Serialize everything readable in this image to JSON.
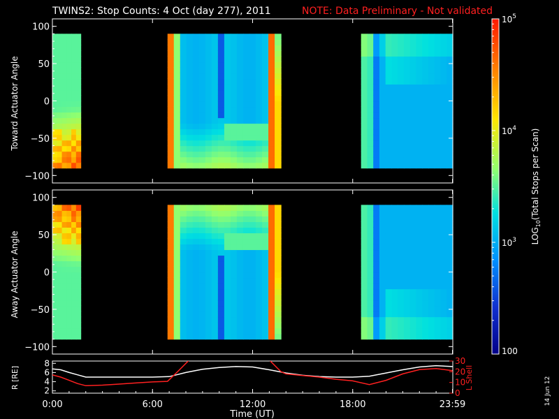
{
  "header": {
    "title": "TWINS2: Stop Counts:  4 Oct (day 277), 2011",
    "note": "NOTE: Data Preliminary - Not validated",
    "note_color": "#ff2020"
  },
  "side_date": "14 Jun 12",
  "chart_data": [
    {
      "type": "heatmap",
      "name": "toward",
      "ylabel": "Toward Actuator Angle",
      "ylim": [
        -110,
        110
      ],
      "yticks": [
        100,
        50,
        0,
        -50,
        -100
      ],
      "xlim": [
        0,
        24
      ],
      "data_intervals_ut": [
        [
          0.0,
          1.7
        ],
        [
          6.9,
          13.7
        ],
        [
          18.5,
          24.0
        ]
      ],
      "angle_range": [
        -90,
        90
      ]
    },
    {
      "type": "heatmap",
      "name": "away",
      "ylabel": "Away Actuator Angle",
      "ylim": [
        -110,
        110
      ],
      "yticks": [
        100,
        50,
        0,
        -50,
        -100
      ],
      "xlim": [
        0,
        24
      ],
      "data_intervals_ut": [
        [
          0.0,
          1.7
        ],
        [
          6.9,
          13.7
        ],
        [
          18.5,
          24.0
        ]
      ],
      "angle_range": [
        -90,
        90
      ]
    },
    {
      "type": "line",
      "name": "orbit",
      "xlabel": "Time (UT)",
      "xlim": [
        0,
        24
      ],
      "xticks": [
        "0:00",
        "6:00",
        "12:00",
        "18:00",
        "23:59"
      ],
      "xtick_values": [
        0,
        6,
        12,
        18,
        23.98
      ],
      "left_axis": {
        "label": "R [RE]",
        "ylim": [
          1.5,
          8.5
        ],
        "yticks": [
          "8",
          "6",
          "4",
          "2"
        ],
        "ytick_values": [
          8,
          6,
          4,
          2
        ]
      },
      "right_axis": {
        "label": "L Shell",
        "ylim": [
          0,
          30
        ],
        "yticks": [
          "30",
          "20",
          "10",
          "0"
        ],
        "ytick_values": [
          30,
          20,
          10,
          0
        ],
        "color": "#ff2020"
      },
      "series": [
        {
          "axis": "left",
          "color": "#ffffff",
          "x": [
            0,
            0.5,
            1,
            1.5,
            2,
            3,
            4,
            5,
            6,
            7,
            8,
            9,
            10,
            11,
            12,
            13,
            14,
            15,
            16,
            17,
            18,
            19,
            20,
            21,
            22,
            23,
            23.98
          ],
          "y": [
            6.8,
            6.6,
            6.0,
            5.5,
            5.0,
            5.0,
            5.0,
            5.0,
            5.0,
            5.1,
            6.0,
            6.7,
            7.1,
            7.3,
            7.2,
            6.6,
            5.9,
            5.4,
            5.1,
            5.0,
            5.0,
            5.2,
            5.9,
            6.6,
            7.2,
            7.5,
            7.3
          ]
        },
        {
          "axis": "right",
          "color": "#ff2020",
          "x": [
            0,
            0.5,
            1,
            1.5,
            2,
            3,
            4,
            5,
            6,
            6.9,
            7.5,
            8.2,
            8.6,
            12.6,
            13.0,
            13.7,
            14,
            15,
            16,
            17,
            18,
            19,
            20,
            21,
            22,
            23,
            23.98
          ],
          "y": [
            17,
            15,
            12,
            9,
            7,
            7.5,
            8.5,
            9.5,
            10.5,
            11,
            20,
            31,
            33,
            33,
            31,
            20,
            18,
            16.5,
            15,
            13,
            11.5,
            8,
            12,
            18,
            22,
            23,
            21
          ]
        }
      ]
    }
  ],
  "colorbar": {
    "label": "LOG10(Total Stops per Scan)",
    "label_prefix": "LOG",
    "label_sub": "10",
    "label_rest": "(Total Stops per Scan)",
    "scale": "log",
    "range": [
      100,
      100000
    ],
    "ticks": [
      "10",
      "10",
      "10",
      "100"
    ],
    "tick_exps": [
      "5",
      "4",
      "3",
      ""
    ],
    "tick_values": [
      100000,
      10000,
      1000,
      100
    ],
    "colors": [
      "#ff2000",
      "#ff8000",
      "#ffe000",
      "#80ff80",
      "#00e0e0",
      "#0090ff",
      "#1030d0",
      "#000080"
    ]
  }
}
